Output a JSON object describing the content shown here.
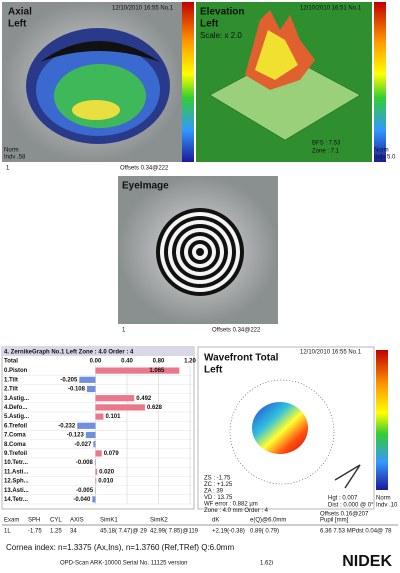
{
  "axial": {
    "title": "Axial",
    "eye": "Left",
    "date": "12/10/2010 16:55 No.1",
    "index": "1",
    "norm": "Norm",
    "indv": "Indv .58",
    "offsets": "Offsets 0.34@222"
  },
  "elevation": {
    "title": "Elevation",
    "eye": "Left",
    "date": "12/10/2010 16:51 No.1",
    "scale": "Scale: x 2.0",
    "bfs": "BFS : 7.53",
    "zone": "Zone : 7.1",
    "norm": "Norm",
    "indv": "Indv 5.0"
  },
  "eye_image": {
    "title": "EyeImage",
    "index": "1",
    "offsets": "Offsets 0.34@222"
  },
  "chart_data": {
    "type": "bar",
    "orientation": "horizontal",
    "title": "4. ZernikeGraph No.1 Left Zone : 4.0 Order : 4",
    "total_label": "Total",
    "categories": [
      "0.Piston",
      "1.Tilt",
      "2.Tilt",
      "3.Astig...",
      "4.Defo...",
      "5.Astig...",
      "6.Trefoil",
      "7.Coma",
      "8.Coma",
      "9.Trefoil",
      "10.Tetr...",
      "11.Asti...",
      "12.Sph...",
      "13.Asti...",
      "14.Tetr..."
    ],
    "values": [
      1.065,
      -0.205,
      -0.108,
      0.492,
      0.628,
      0.101,
      -0.232,
      -0.123,
      -0.027,
      0.079,
      -0.008,
      0.02,
      0.01,
      -0.005,
      -0.04
    ],
    "value_labels": [
      "1.065",
      "-0.205",
      "-0.108",
      "0.492",
      "0.628",
      "0.101",
      "-0.232",
      "-0.123",
      "-0.027",
      "0.079",
      "-0.008",
      "0.020",
      "0.010",
      "-0.005",
      "-0.040"
    ],
    "xlim": [
      -0.4,
      1.2
    ],
    "xticks": [
      {
        "value": 0,
        "label": "0.00"
      },
      {
        "value": 0.4,
        "label": "0.40"
      },
      {
        "value": 0.8,
        "label": "0.80"
      },
      {
        "value": 1.2,
        "label": "1.20"
      }
    ],
    "positive_color": "#e8788a",
    "negative_color": "#7090dc"
  },
  "wavefront": {
    "title": "Wavefront Total",
    "eye": "Left",
    "date": "12/10/2010 16:55 No.1",
    "stats": [
      "ZS : -1.75",
      "ZC : +1.25",
      "ZA : 39",
      "VD : 13.75",
      "WF error : 0.882 µm",
      "Zone : 4.0 mm Order : 4"
    ],
    "hgt": "Hgt : 0.007",
    "dist": "Dist : 0.000 @ 0°",
    "norm": "Norm",
    "indv": "Indv .10",
    "offsets": "Offsets 0.16@207"
  },
  "table": {
    "headers": [
      "Exam",
      "SPH",
      "CYL",
      "AXIS",
      "SimK1",
      "SimK2",
      "dK",
      "e(Q)@6.0mm",
      "Pupil [mm]"
    ],
    "rows": [
      [
        "1L",
        "-1.75",
        "1.25",
        "34",
        "45.18( 7.47)@ 29",
        "42.99( 7.85)@119",
        "+2.19(-0.38)",
        "0.89( 0.79)",
        "6.36 7.53 MPdst 0.04@ 78"
      ]
    ]
  },
  "cornea_index": "Cornea index: n=1.3375 (Ax,Ins), n=1.3760 (Ref,TRef) Q:6.0mm",
  "footer": {
    "model": "OPD-Scan ARK-10000 Serial No. 11125 version",
    "version": "1.62i",
    "brand": "NIDEK"
  }
}
